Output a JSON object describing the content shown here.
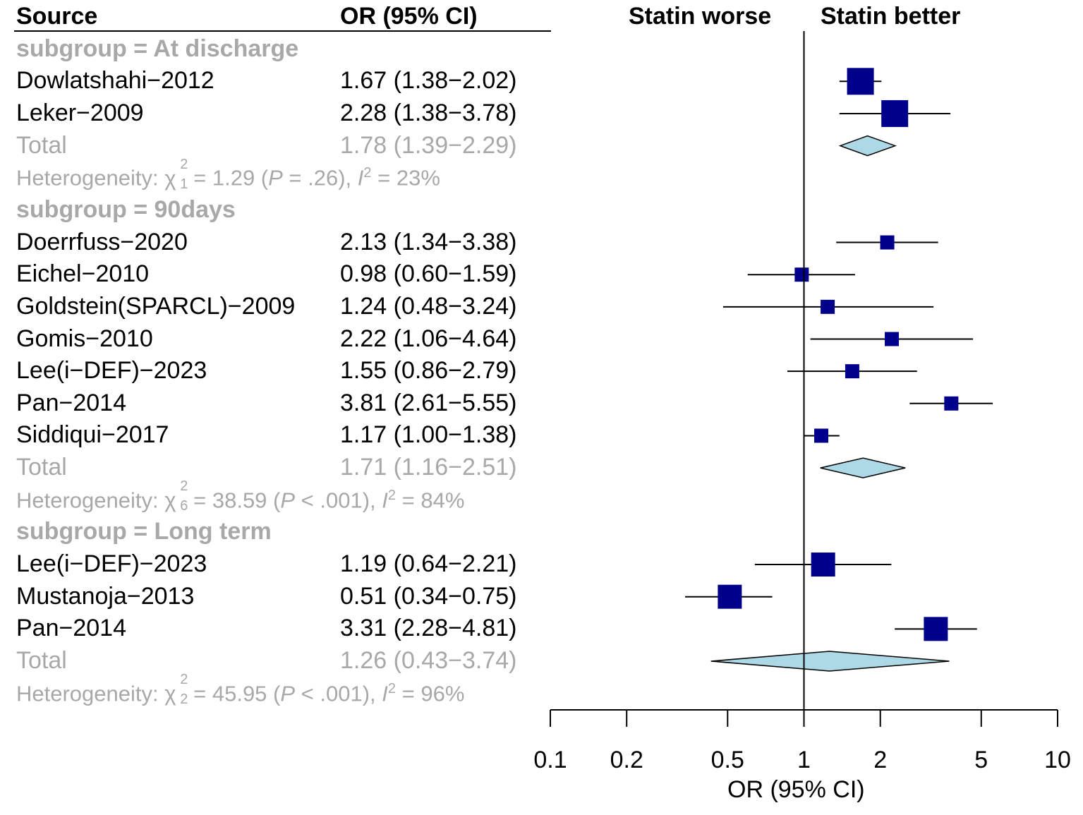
{
  "headers": {
    "source": "Source",
    "or_ci": "OR (95% CI)",
    "left_direction": "Statin worse",
    "right_direction": "Statin better"
  },
  "groups": [
    {
      "label": "subgroup = At discharge",
      "studies": [
        {
          "name": "Dowlatshahi−2012",
          "ci_text": "1.67 (1.38−2.02)",
          "or": 1.67,
          "lo": 1.38,
          "hi": 2.02,
          "weight": "large"
        },
        {
          "name": "Leker−2009",
          "ci_text": "2.28 (1.38−3.78)",
          "or": 2.28,
          "lo": 1.38,
          "hi": 3.78,
          "weight": "large"
        }
      ],
      "total": {
        "label": "Total",
        "ci_text": "1.78 (1.39−2.29)",
        "or": 1.78,
        "lo": 1.39,
        "hi": 2.29
      },
      "heterogeneity": {
        "prefix": "Heterogeneity: ",
        "chi_symbol": "χ",
        "sup": "2",
        "df": "1",
        "chi_value": " = 1.29 (",
        "p_symbol": "P",
        "p_text": " = .26), ",
        "i_symbol": "I",
        "i_sup": "2",
        "i_text": " = 23%"
      }
    },
    {
      "label": "subgroup = 90days",
      "studies": [
        {
          "name": "Doerrfuss−2020",
          "ci_text": "2.13 (1.34−3.38)",
          "or": 2.13,
          "lo": 1.34,
          "hi": 3.38,
          "weight": "small"
        },
        {
          "name": "Eichel−2010",
          "ci_text": "0.98 (0.60−1.59)",
          "or": 0.98,
          "lo": 0.6,
          "hi": 1.59,
          "weight": "small"
        },
        {
          "name": "Goldstein(SPARCL)−2009",
          "ci_text": "1.24 (0.48−3.24)",
          "or": 1.24,
          "lo": 0.48,
          "hi": 3.24,
          "weight": "small"
        },
        {
          "name": "Gomis−2010",
          "ci_text": "2.22 (1.06−4.64)",
          "or": 2.22,
          "lo": 1.06,
          "hi": 4.64,
          "weight": "small"
        },
        {
          "name": "Lee(i−DEF)−2023",
          "ci_text": "1.55 (0.86−2.79)",
          "or": 1.55,
          "lo": 0.86,
          "hi": 2.79,
          "weight": "small"
        },
        {
          "name": "Pan−2014",
          "ci_text": "3.81 (2.61−5.55)",
          "or": 3.81,
          "lo": 2.61,
          "hi": 5.55,
          "weight": "small"
        },
        {
          "name": "Siddiqui−2017",
          "ci_text": "1.17 (1.00−1.38)",
          "or": 1.17,
          "lo": 1.0,
          "hi": 1.38,
          "weight": "small"
        }
      ],
      "total": {
        "label": "Total",
        "ci_text": "1.71 (1.16−2.51)",
        "or": 1.71,
        "lo": 1.16,
        "hi": 2.51
      },
      "heterogeneity": {
        "prefix": "Heterogeneity: ",
        "chi_symbol": "χ",
        "sup": "2",
        "df": "6",
        "chi_value": " = 38.59 (",
        "p_symbol": "P",
        "p_text": " < .001), ",
        "i_symbol": "I",
        "i_sup": "2",
        "i_text": " = 84%"
      }
    },
    {
      "label": "subgroup = Long term",
      "studies": [
        {
          "name": "Lee(i−DEF)−2023",
          "ci_text": "1.19 (0.64−2.21)",
          "or": 1.19,
          "lo": 0.64,
          "hi": 2.21,
          "weight": "medium"
        },
        {
          "name": "Mustanoja−2013",
          "ci_text": "0.51 (0.34−0.75)",
          "or": 0.51,
          "lo": 0.34,
          "hi": 0.75,
          "weight": "medium"
        },
        {
          "name": "Pan−2014",
          "ci_text": "3.31 (2.28−4.81)",
          "or": 3.31,
          "lo": 2.28,
          "hi": 4.81,
          "weight": "medium"
        }
      ],
      "total": {
        "label": "Total",
        "ci_text": "1.26 (0.43−3.74)",
        "or": 1.26,
        "lo": 0.43,
        "hi": 3.74
      },
      "heterogeneity": {
        "prefix": "Heterogeneity: ",
        "chi_symbol": "χ",
        "sup": "2",
        "df": "2",
        "chi_value": " = 45.95 (",
        "p_symbol": "P",
        "p_text": " < .001), ",
        "i_symbol": "I",
        "i_sup": "2",
        "i_text": " = 96%"
      }
    }
  ],
  "chart_data": {
    "type": "forest",
    "scale": "log",
    "xlabel": "OR (95% CI)",
    "xlim": [
      0.1,
      10
    ],
    "reference_line": 1,
    "ticks": [
      0.1,
      0.2,
      0.5,
      1,
      2,
      5,
      10
    ],
    "tick_labels": [
      "0.1",
      "0.2",
      "0.5",
      "1",
      "2",
      "5",
      "10"
    ]
  },
  "colors": {
    "square": "#00008b",
    "diamond_fill": "#add8e6",
    "grey_text": "#a8a8a8",
    "line": "#000000"
  }
}
